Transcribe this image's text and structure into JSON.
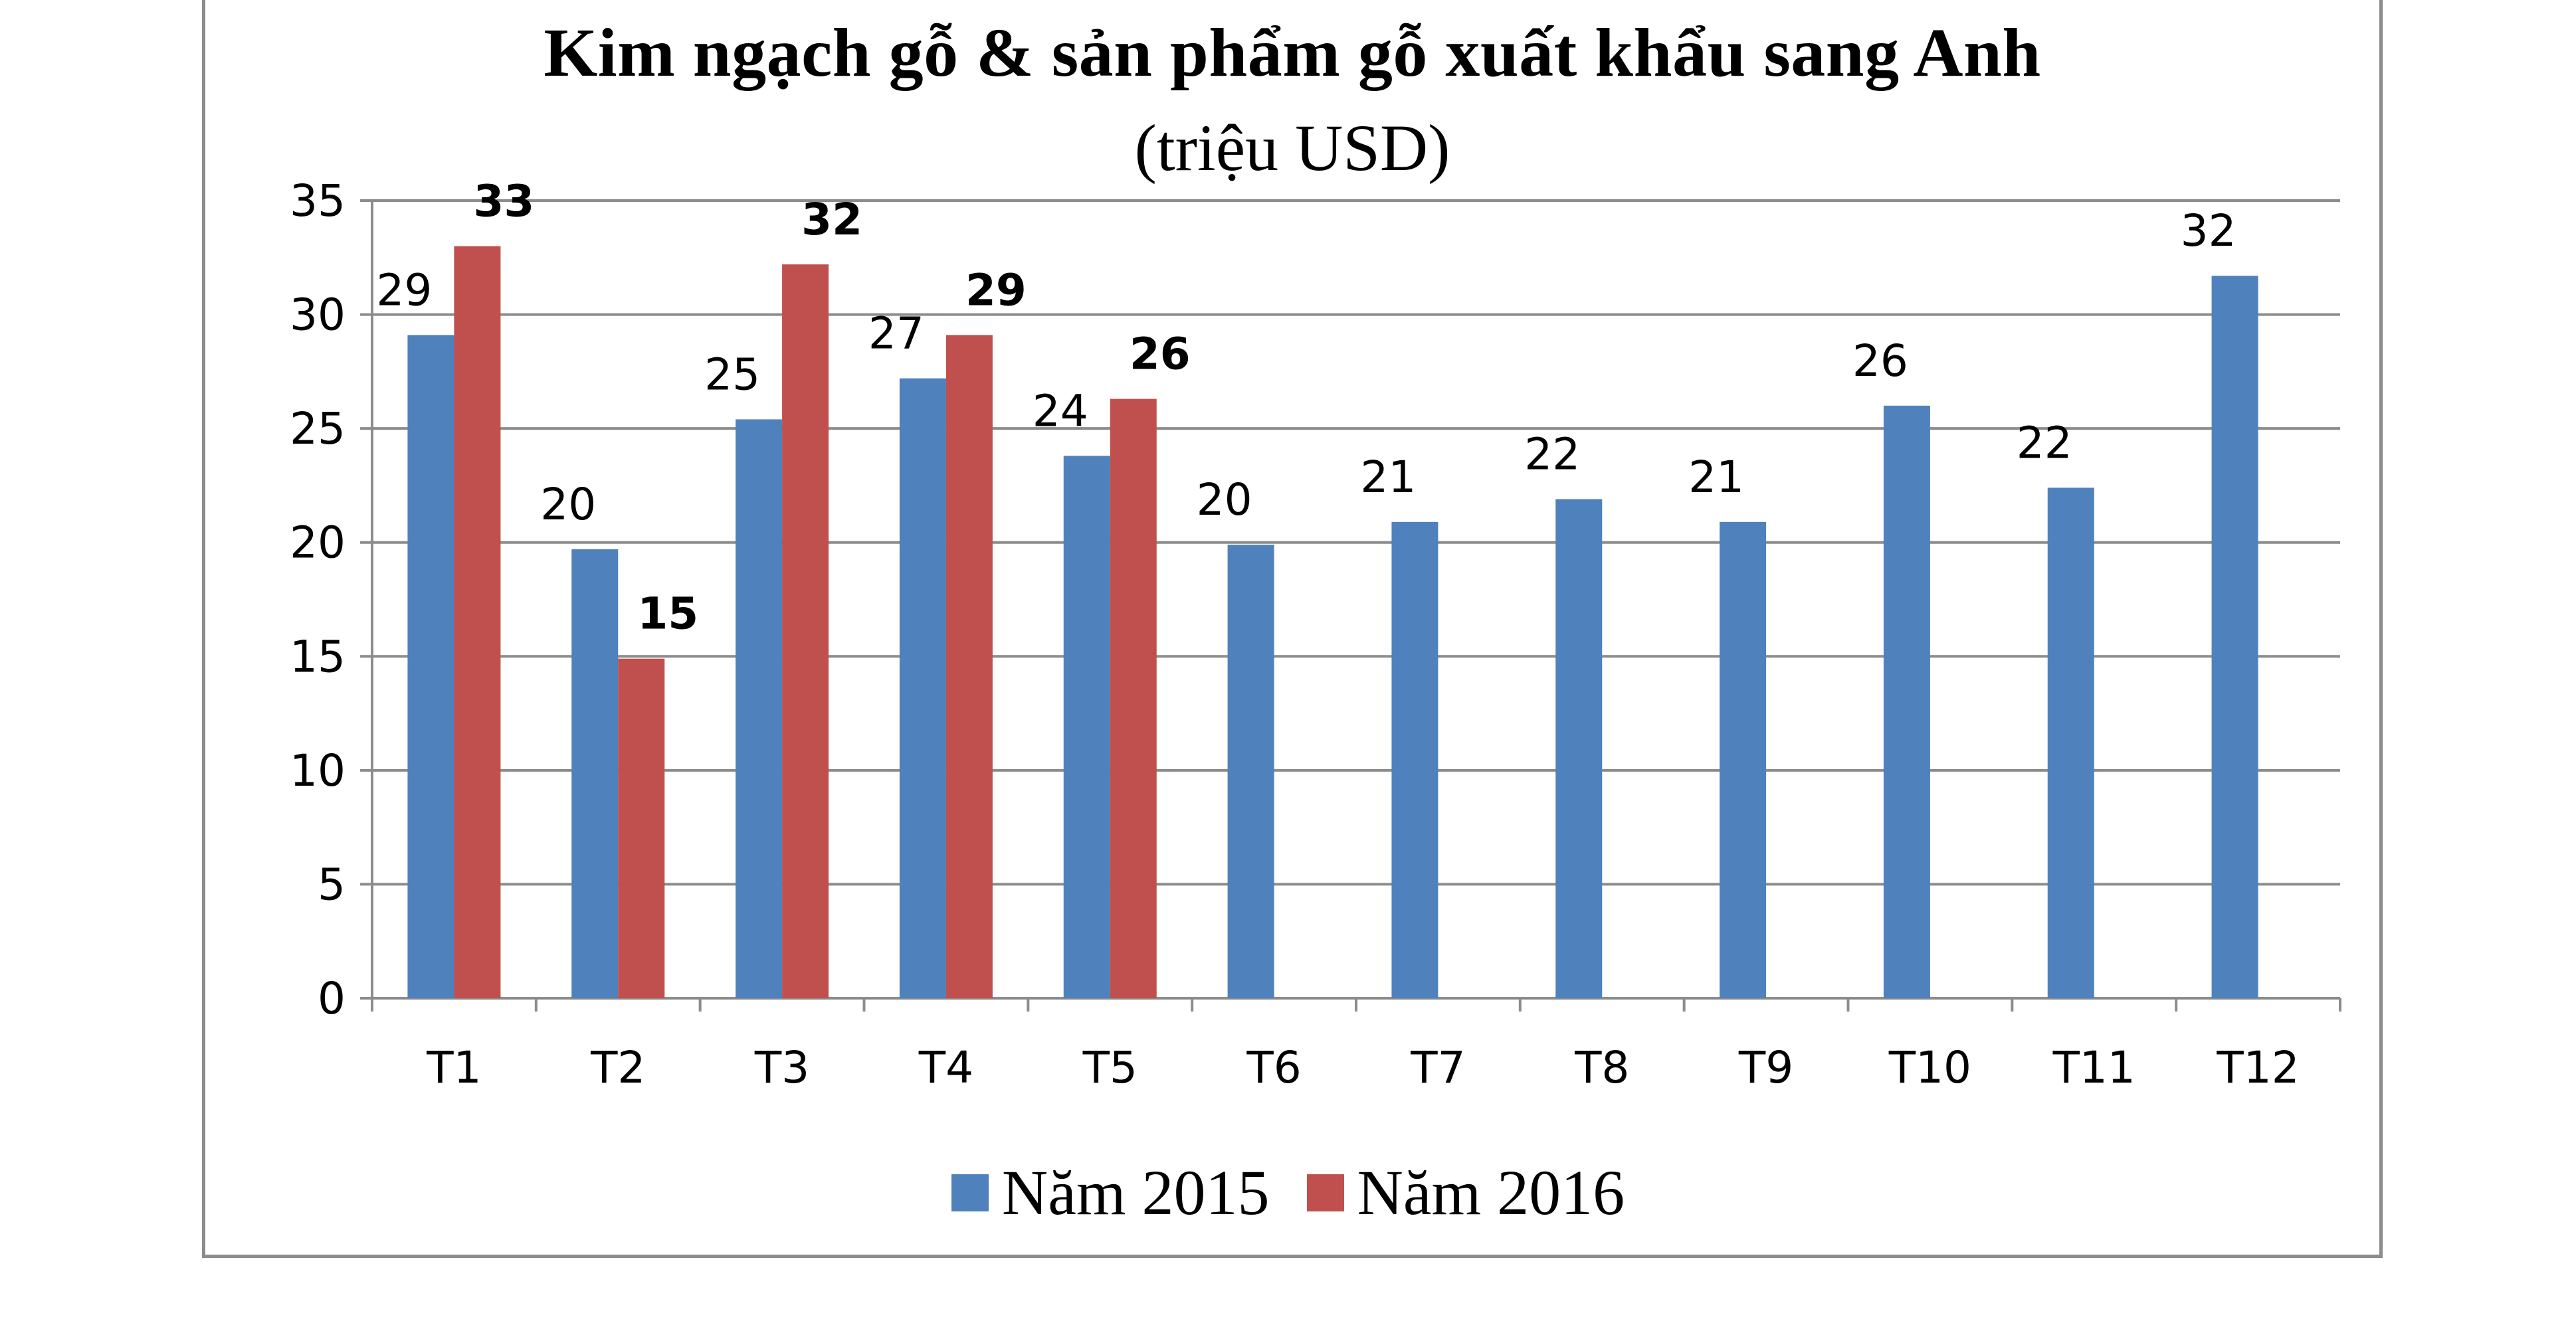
{
  "chart_data": {
    "type": "bar",
    "title": "Kim ngạch gỗ & sản phẩm gỗ xuất khẩu  sang Anh",
    "subtitle": "(triệu USD)",
    "categories": [
      "T1",
      "T2",
      "T3",
      "T4",
      "T5",
      "T6",
      "T7",
      "T8",
      "T9",
      "T10",
      "T11",
      "T12"
    ],
    "series": [
      {
        "name": "Năm 2015",
        "color": "#4f81bd",
        "values": [
          29.1,
          19.7,
          25.4,
          27.2,
          23.8,
          19.9,
          20.9,
          21.9,
          20.9,
          26.0,
          22.4,
          31.7
        ],
        "labels": [
          "29",
          "20",
          "25",
          "27",
          "24",
          "20",
          "21",
          "22",
          "21",
          "26",
          "22",
          "32"
        ],
        "label_bold": false
      },
      {
        "name": "Năm 2016",
        "color": "#c0504d",
        "values": [
          33.0,
          14.9,
          32.2,
          29.1,
          26.3,
          null,
          null,
          null,
          null,
          null,
          null,
          null
        ],
        "labels": [
          "33",
          "15",
          "32",
          "29",
          "26",
          "",
          "",
          "",
          "",
          "",
          "",
          ""
        ],
        "label_bold": true
      }
    ],
    "ylim": [
      0,
      35
    ],
    "yticks": [
      0,
      5,
      10,
      15,
      20,
      25,
      30,
      35
    ],
    "grid": true,
    "legend_position": "bottom"
  }
}
